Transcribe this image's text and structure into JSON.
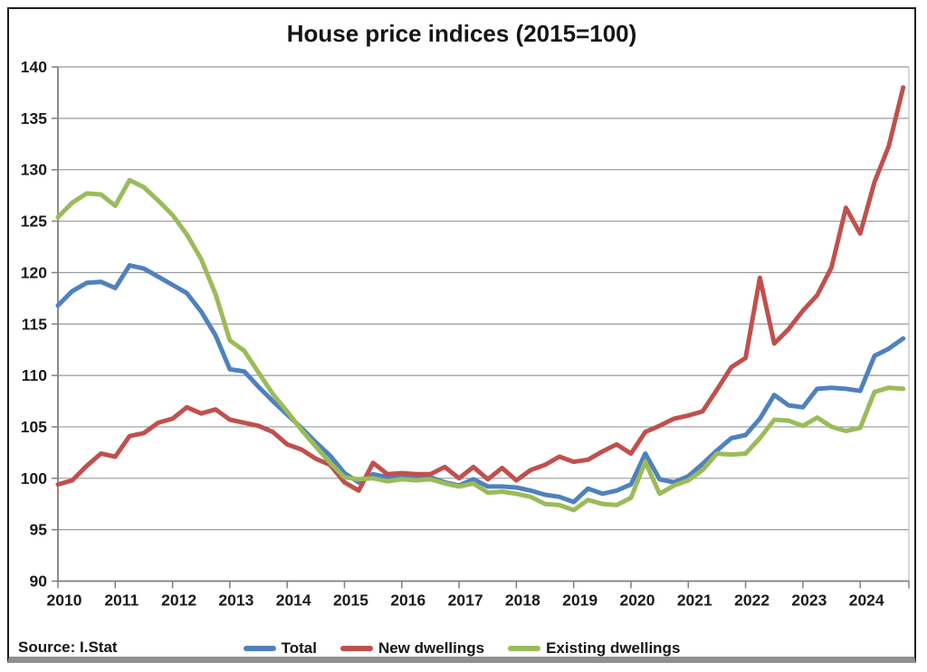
{
  "title": "House price indices (2015=100)",
  "source": "Source: I.Stat",
  "chart_data": {
    "type": "line",
    "title": "House price indices (2015=100)",
    "source": "Source: I.Stat",
    "x_start_year": 2010,
    "points_per_year": 4,
    "x_tick_labels": [
      "2010",
      "2011",
      "2012",
      "2013",
      "2014",
      "2015",
      "2016",
      "2017",
      "2018",
      "2019",
      "2020",
      "2021",
      "2022",
      "2023",
      "2024"
    ],
    "y_ticks": [
      90,
      95,
      100,
      105,
      110,
      115,
      120,
      125,
      130,
      135,
      140
    ],
    "ylim": [
      90,
      140
    ],
    "grid": "horizontal",
    "legend_position": "bottom",
    "axis_color": "#808080",
    "grid_color": "#9a9a9a",
    "series": [
      {
        "name": "Total",
        "color": "#4F81BD",
        "values": [
          116.8,
          118.2,
          119.0,
          119.1,
          118.5,
          120.7,
          120.4,
          119.6,
          118.8,
          118.0,
          116.2,
          113.9,
          110.6,
          110.4,
          108.9,
          107.5,
          106.2,
          104.9,
          103.5,
          102.2,
          100.5,
          99.6,
          100.4,
          100.1,
          100.3,
          100.0,
          100.1,
          99.6,
          99.3,
          99.9,
          99.2,
          99.2,
          99.1,
          98.8,
          98.4,
          98.2,
          97.7,
          99.0,
          98.5,
          98.8,
          99.4,
          102.4,
          99.9,
          99.6,
          100.2,
          101.4,
          102.7,
          103.9,
          104.2,
          105.8,
          108.1,
          107.1,
          106.9,
          108.7,
          108.8,
          108.7,
          108.5,
          111.9,
          112.6,
          113.6
        ]
      },
      {
        "name": "New dwellings",
        "color": "#C0504D",
        "values": [
          99.4,
          99.8,
          101.2,
          102.4,
          102.1,
          104.1,
          104.4,
          105.4,
          105.8,
          106.9,
          106.3,
          106.7,
          105.7,
          105.4,
          105.1,
          104.5,
          103.3,
          102.8,
          101.9,
          101.3,
          99.6,
          98.8,
          101.5,
          100.4,
          100.5,
          100.4,
          100.4,
          101.1,
          100.0,
          101.1,
          99.9,
          101.0,
          99.8,
          100.8,
          101.3,
          102.1,
          101.6,
          101.8,
          102.6,
          103.3,
          102.4,
          104.5,
          105.1,
          105.8,
          106.1,
          106.5,
          108.6,
          110.8,
          111.7,
          119.5,
          113.1,
          114.5,
          116.3,
          117.8,
          120.5,
          126.3,
          123.8,
          128.8,
          132.3,
          138.0
        ]
      },
      {
        "name": "Existing dwellings",
        "color": "#9BBB59",
        "values": [
          125.4,
          126.8,
          127.7,
          127.6,
          126.5,
          129.0,
          128.3,
          127.0,
          125.6,
          123.7,
          121.3,
          117.9,
          113.4,
          112.4,
          110.3,
          108.2,
          106.5,
          104.7,
          103.1,
          101.5,
          100.1,
          99.9,
          100.0,
          99.7,
          99.9,
          99.8,
          99.9,
          99.5,
          99.2,
          99.5,
          98.6,
          98.7,
          98.5,
          98.2,
          97.5,
          97.4,
          96.9,
          97.9,
          97.5,
          97.4,
          98.1,
          101.6,
          98.5,
          99.3,
          99.8,
          100.8,
          102.4,
          102.3,
          102.4,
          103.9,
          105.7,
          105.6,
          105.1,
          105.9,
          105.0,
          104.6,
          104.9,
          108.4,
          108.8,
          108.7
        ]
      }
    ]
  }
}
